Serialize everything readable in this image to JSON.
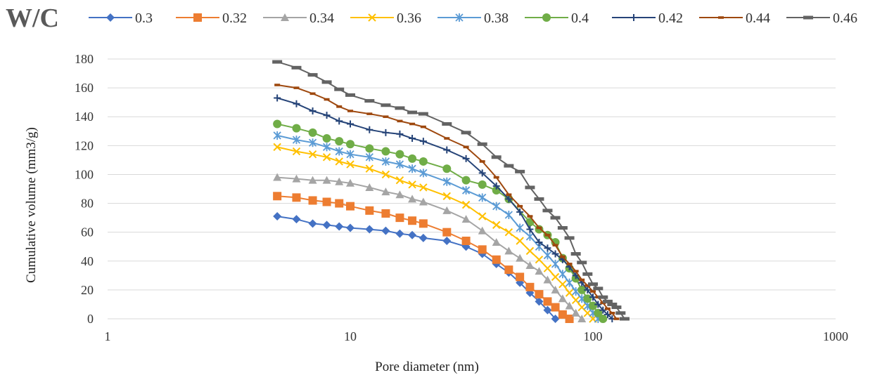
{
  "chart_data": {
    "type": "line",
    "legend_title": "W/C",
    "legend_position": "top",
    "xlabel": "Pore diameter (nm)",
    "ylabel": "Cumulative volume (mm3/g)",
    "x_scale": "log",
    "xlim": [
      1,
      1000
    ],
    "ylim": [
      0,
      180
    ],
    "x_ticks": [
      "1",
      "10",
      "100",
      "1000"
    ],
    "y_ticks": [
      "0",
      "20",
      "40",
      "60",
      "80",
      "100",
      "120",
      "140",
      "160",
      "180"
    ],
    "grid": "horizontal",
    "series": [
      {
        "name": "0.3",
        "color": "#4472C4",
        "marker": "diamond",
        "x": [
          5,
          6,
          7,
          8,
          9,
          10,
          12,
          14,
          16,
          18,
          20,
          25,
          30,
          35,
          40,
          45,
          50,
          55,
          60,
          65,
          70
        ],
        "y": [
          71,
          69,
          66,
          65,
          64,
          63,
          62,
          61,
          59,
          58,
          56,
          54,
          50,
          45,
          38,
          32,
          25,
          18,
          12,
          6,
          0
        ]
      },
      {
        "name": "0.32",
        "color": "#ED7D31",
        "marker": "square",
        "x": [
          5,
          6,
          7,
          8,
          9,
          10,
          12,
          14,
          16,
          18,
          20,
          25,
          30,
          35,
          40,
          45,
          50,
          55,
          60,
          65,
          70,
          75,
          80
        ],
        "y": [
          85,
          84,
          82,
          81,
          80,
          78,
          75,
          73,
          70,
          68,
          66,
          60,
          54,
          48,
          41,
          34,
          29,
          22,
          17,
          12,
          8,
          3,
          0
        ]
      },
      {
        "name": "0.34",
        "color": "#A5A5A5",
        "marker": "triangle",
        "x": [
          5,
          6,
          7,
          8,
          9,
          10,
          12,
          14,
          16,
          18,
          20,
          25,
          30,
          35,
          40,
          45,
          50,
          55,
          60,
          65,
          70,
          75,
          80,
          85,
          90
        ],
        "y": [
          98,
          97,
          96,
          96,
          95,
          94,
          91,
          88,
          86,
          83,
          81,
          75,
          69,
          61,
          53,
          47,
          42,
          37,
          33,
          27,
          20,
          14,
          9,
          4,
          0
        ]
      },
      {
        "name": "0.36",
        "color": "#FFC000",
        "marker": "x",
        "x": [
          5,
          6,
          7,
          8,
          9,
          10,
          12,
          14,
          16,
          18,
          20,
          25,
          30,
          35,
          40,
          45,
          50,
          55,
          60,
          65,
          70,
          75,
          80,
          85,
          90,
          95,
          100
        ],
        "y": [
          119,
          116,
          114,
          112,
          109,
          107,
          104,
          100,
          96,
          93,
          91,
          85,
          79,
          71,
          65,
          60,
          54,
          47,
          41,
          35,
          29,
          24,
          18,
          13,
          8,
          4,
          0
        ]
      },
      {
        "name": "0.38",
        "color": "#5B9BD5",
        "marker": "star",
        "x": [
          5,
          6,
          7,
          8,
          9,
          10,
          12,
          14,
          16,
          18,
          20,
          25,
          30,
          35,
          40,
          45,
          50,
          55,
          60,
          65,
          70,
          75,
          80,
          85,
          90,
          95,
          100,
          105
        ],
        "y": [
          127,
          124,
          122,
          119,
          116,
          114,
          112,
          109,
          107,
          104,
          101,
          95,
          89,
          84,
          78,
          72,
          63,
          57,
          50,
          44,
          38,
          31,
          25,
          19,
          14,
          9,
          4,
          0
        ]
      },
      {
        "name": "0.4",
        "color": "#70AD47",
        "marker": "circle",
        "x": [
          5,
          6,
          7,
          8,
          9,
          10,
          12,
          14,
          16,
          18,
          20,
          25,
          30,
          35,
          40,
          45,
          55,
          60,
          65,
          70,
          75,
          80,
          85,
          90,
          95,
          100,
          105,
          110
        ],
        "y": [
          135,
          132,
          129,
          125,
          123,
          121,
          118,
          116,
          114,
          111,
          109,
          104,
          96,
          93,
          89,
          83,
          67,
          62,
          58,
          53,
          42,
          35,
          28,
          20,
          14,
          9,
          4,
          0
        ]
      },
      {
        "name": "0.42",
        "color": "#264478",
        "marker": "plus",
        "x": [
          5,
          6,
          7,
          8,
          9,
          10,
          12,
          14,
          16,
          18,
          20,
          25,
          30,
          35,
          40,
          45,
          50,
          55,
          60,
          65,
          70,
          75,
          80,
          85,
          90,
          95,
          100,
          105,
          110,
          115,
          120
        ],
        "y": [
          153,
          149,
          144,
          141,
          137,
          135,
          131,
          129,
          128,
          125,
          123,
          117,
          111,
          101,
          92,
          83,
          74,
          62,
          53,
          49,
          45,
          41,
          36,
          30,
          25,
          20,
          15,
          10,
          6,
          3,
          0
        ]
      },
      {
        "name": "0.44",
        "color": "#9E480E",
        "marker": "dash",
        "x": [
          5,
          6,
          7,
          8,
          9,
          10,
          12,
          14,
          16,
          18,
          20,
          25,
          30,
          35,
          40,
          45,
          50,
          55,
          60,
          65,
          70,
          75,
          80,
          85,
          90,
          95,
          100,
          105,
          110,
          115,
          120,
          125
        ],
        "y": [
          162,
          160,
          156,
          152,
          147,
          144,
          142,
          140,
          137,
          135,
          133,
          125,
          119,
          109,
          98,
          86,
          78,
          71,
          63,
          58,
          51,
          43,
          38,
          33,
          27,
          23,
          19,
          15,
          11,
          7,
          4,
          0
        ]
      },
      {
        "name": "0.46",
        "color": "#636363",
        "marker": "wide-dash",
        "x": [
          5,
          6,
          7,
          8,
          9,
          10,
          12,
          14,
          16,
          18,
          20,
          25,
          30,
          35,
          40,
          45,
          50,
          55,
          60,
          65,
          70,
          75,
          80,
          85,
          90,
          95,
          100,
          105,
          110,
          115,
          120,
          125,
          130,
          135
        ],
        "y": [
          178,
          174,
          169,
          164,
          159,
          155,
          151,
          148,
          146,
          143,
          142,
          135,
          129,
          121,
          112,
          106,
          102,
          91,
          83,
          75,
          70,
          63,
          56,
          45,
          39,
          31,
          24,
          21,
          15,
          12,
          10,
          8,
          4,
          0
        ]
      }
    ]
  }
}
